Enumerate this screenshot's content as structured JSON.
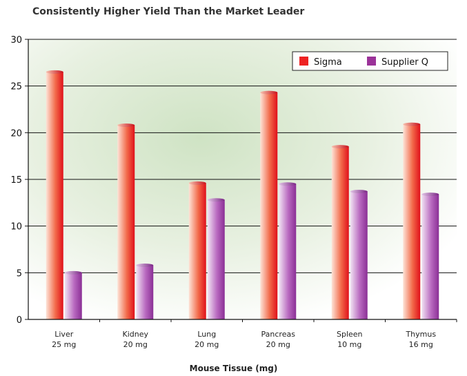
{
  "chart_data": {
    "type": "bar",
    "title": "Consistently Higher Yield Than the Market Leader",
    "xlabel": "Mouse Tissue (mg)",
    "ylabel": "",
    "ylim": [
      0,
      30
    ],
    "yticks": [
      "0",
      "5",
      "10",
      "15",
      "20",
      "25",
      "30"
    ],
    "categories": [
      [
        "Liver",
        "25 mg"
      ],
      [
        "Kidney",
        "20 mg"
      ],
      [
        "Lung",
        "20 mg"
      ],
      [
        "Pancreas",
        "20 mg"
      ],
      [
        "Spleen",
        "10 mg"
      ],
      [
        "Thymus",
        "16 mg"
      ]
    ],
    "series": [
      {
        "name": "Sigma",
        "values": [
          26.5,
          20.8,
          14.6,
          24.3,
          18.5,
          20.9
        ],
        "color": "#ee2222"
      },
      {
        "name": "Supplier Q",
        "values": [
          5.0,
          5.8,
          12.8,
          14.5,
          13.7,
          13.4
        ],
        "color": "#9b3399"
      }
    ],
    "grid": true,
    "legend_position": "top-right"
  }
}
